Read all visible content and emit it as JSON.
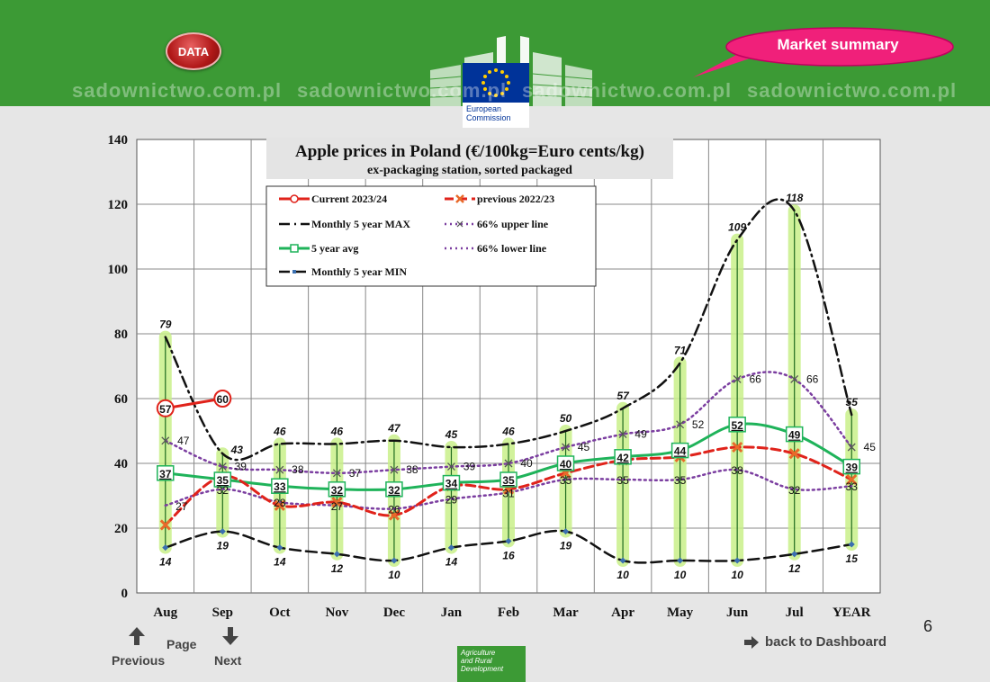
{
  "header": {
    "data_button": "DATA",
    "market_summary": "Market summary",
    "ec_line1": "European",
    "ec_line2": "Commission",
    "watermark": "sadownictwo.com.pl"
  },
  "footer": {
    "previous": "Previous",
    "page": "Page",
    "next": "Next",
    "page_number": "6",
    "back_to_dashboard": "back to Dashboard",
    "agri_line1": "Agriculture",
    "agri_line2": "and Rural",
    "agri_line3": "Development"
  },
  "colors": {
    "current": "#e0231b",
    "previous": "#e0231b",
    "max": "#111111",
    "avg": "#1fb35a",
    "upper": "#7b3ea0",
    "lower": "#7b3ea0",
    "min": "#111111",
    "band": "#c9f08a"
  },
  "chart_data": {
    "type": "line",
    "title": "Apple prices in Poland (€/100kg=Euro cents/kg)",
    "subtitle": "ex-packaging station, sorted packaged",
    "categories": [
      "Aug",
      "Sep",
      "Oct",
      "Nov",
      "Dec",
      "Jan",
      "Feb",
      "Mar",
      "Apr",
      "May",
      "Jun",
      "Jul",
      "YEAR"
    ],
    "ylim": [
      0,
      140
    ],
    "yticks": [
      0,
      20,
      40,
      60,
      80,
      100,
      120,
      140
    ],
    "grid": true,
    "legend_position": "top-left",
    "series": [
      {
        "name": "Current 2023/24",
        "values": [
          57,
          60,
          null,
          null,
          null,
          null,
          null,
          null,
          null,
          null,
          null,
          null,
          null
        ]
      },
      {
        "name": "previous 2022/23",
        "values": [
          21,
          36,
          27,
          28,
          24,
          33,
          32,
          37,
          41,
          42,
          45,
          43,
          35
        ]
      },
      {
        "name": "Monthly 5 year MAX",
        "values": [
          79,
          43,
          46,
          46,
          47,
          45,
          46,
          50,
          57,
          71,
          109,
          118,
          55
        ]
      },
      {
        "name": "66% upper line",
        "values": [
          47,
          39,
          38,
          37,
          38,
          39,
          40,
          45,
          49,
          52,
          66,
          66,
          45
        ]
      },
      {
        "name": "5 year avg",
        "values": [
          37,
          35,
          33,
          32,
          32,
          34,
          35,
          40,
          42,
          44,
          52,
          49,
          39
        ]
      },
      {
        "name": "66% lower line",
        "values": [
          27,
          32,
          28,
          27,
          26,
          29,
          31,
          35,
          35,
          35,
          38,
          32,
          33
        ]
      },
      {
        "name": "Monthly 5 year MIN",
        "values": [
          14,
          19,
          14,
          12,
          10,
          14,
          16,
          19,
          10,
          10,
          10,
          12,
          15
        ]
      }
    ]
  }
}
